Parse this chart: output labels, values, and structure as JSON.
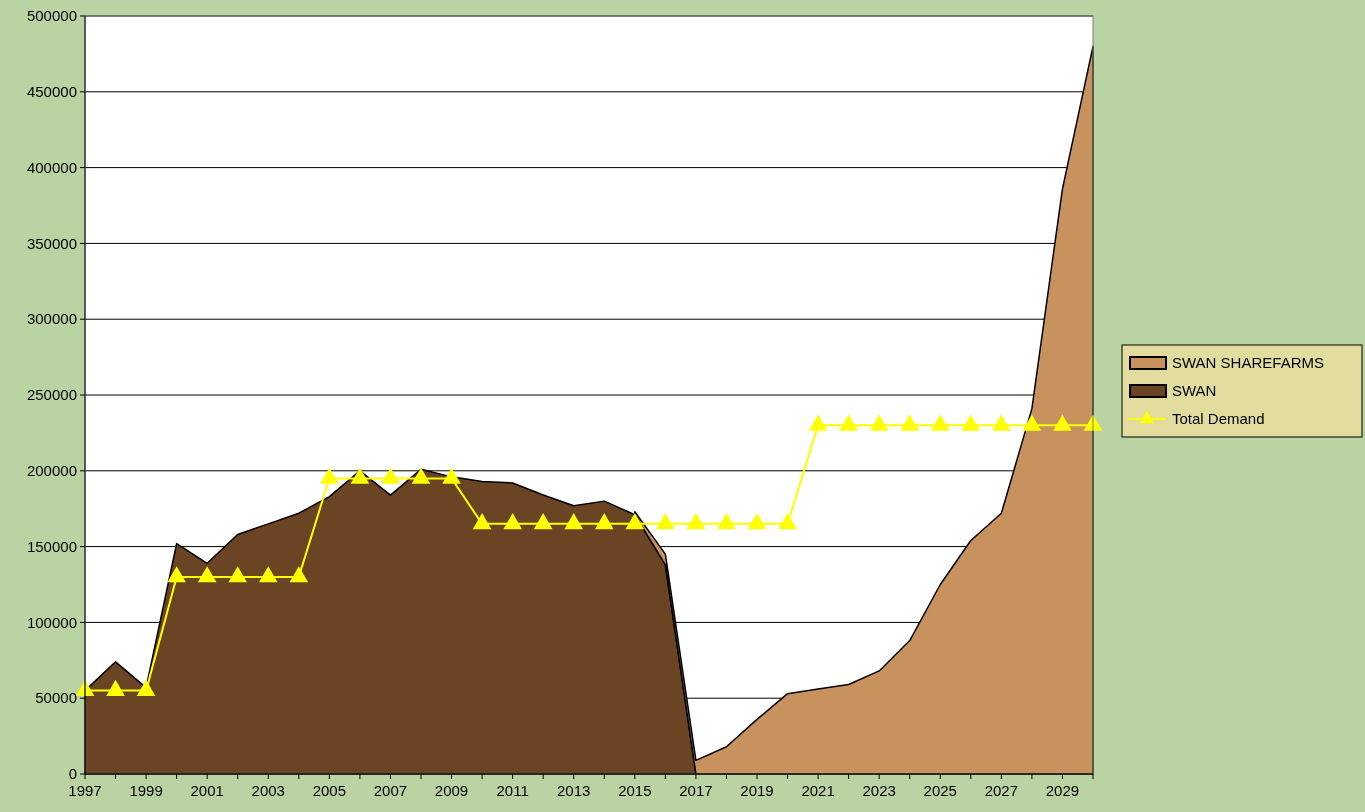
{
  "chart_data": {
    "type": "area",
    "stacked": true,
    "x": [
      1997,
      1998,
      1999,
      2000,
      2001,
      2002,
      2003,
      2004,
      2005,
      2006,
      2007,
      2008,
      2009,
      2010,
      2011,
      2012,
      2013,
      2014,
      2015,
      2016,
      2017,
      2018,
      2019,
      2020,
      2021,
      2022,
      2023,
      2024,
      2025,
      2026,
      2027,
      2028,
      2029,
      2030
    ],
    "series": [
      {
        "name": "SWAN",
        "color": "#6b4423",
        "values": [
          55000,
          74000,
          57000,
          152000,
          139000,
          158000,
          165000,
          172000,
          183000,
          200000,
          184000,
          201000,
          196000,
          193000,
          192000,
          184000,
          177000,
          180000,
          171000,
          138000,
          0,
          null,
          null,
          null,
          null,
          null,
          null,
          null,
          null,
          null,
          null,
          null,
          null,
          null
        ]
      },
      {
        "name": "SWAN SHAREFARMS",
        "color": "#c8925e",
        "values": [
          null,
          null,
          null,
          null,
          null,
          null,
          null,
          null,
          null,
          null,
          null,
          null,
          null,
          null,
          null,
          null,
          null,
          null,
          2000,
          7000,
          9000,
          18000,
          36000,
          53000,
          56000,
          59000,
          68000,
          88000,
          125000,
          154000,
          172000,
          241000,
          386000,
          480000
        ]
      },
      {
        "name": "Total Demand",
        "type": "line",
        "color": "#ffff00",
        "marker": "triangle",
        "values": [
          55000,
          55000,
          55000,
          130000,
          130000,
          130000,
          130000,
          130000,
          195000,
          195000,
          195000,
          195000,
          195000,
          165000,
          165000,
          165000,
          165000,
          165000,
          165000,
          165000,
          165000,
          165000,
          165000,
          165000,
          230000,
          230000,
          230000,
          230000,
          230000,
          230000,
          230000,
          230000,
          230000,
          230000
        ]
      }
    ],
    "xlim": [
      1997,
      2030
    ],
    "xticks": [
      1997,
      {
        "value": 1998,
        "label": null
      },
      1999,
      {
        "value": 2000,
        "label": null
      },
      2001,
      {
        "value": 2002,
        "label": null
      },
      2003,
      {
        "value": 2004,
        "label": null
      },
      2005,
      {
        "value": 2006,
        "label": null
      },
      2007,
      {
        "value": 2008,
        "label": null
      },
      2009,
      {
        "value": 2010,
        "label": null
      },
      2011,
      {
        "value": 2012,
        "label": null
      },
      2013,
      {
        "value": 2014,
        "label": null
      },
      2015,
      {
        "value": 2016,
        "label": null
      },
      2017,
      {
        "value": 2018,
        "label": null
      },
      2019,
      {
        "value": 2020,
        "label": null
      },
      2021,
      {
        "value": 2022,
        "label": null
      },
      2023,
      {
        "value": 2024,
        "label": null
      },
      2025,
      {
        "value": 2026,
        "label": null
      },
      2027,
      {
        "value": 2028,
        "label": null
      },
      2029,
      {
        "value": 2030,
        "label": null
      }
    ],
    "ylim": [
      0,
      500000
    ],
    "yticks": [
      0,
      50000,
      100000,
      150000,
      200000,
      250000,
      300000,
      350000,
      400000,
      450000,
      500000
    ],
    "grid": "y",
    "legend": "right"
  }
}
